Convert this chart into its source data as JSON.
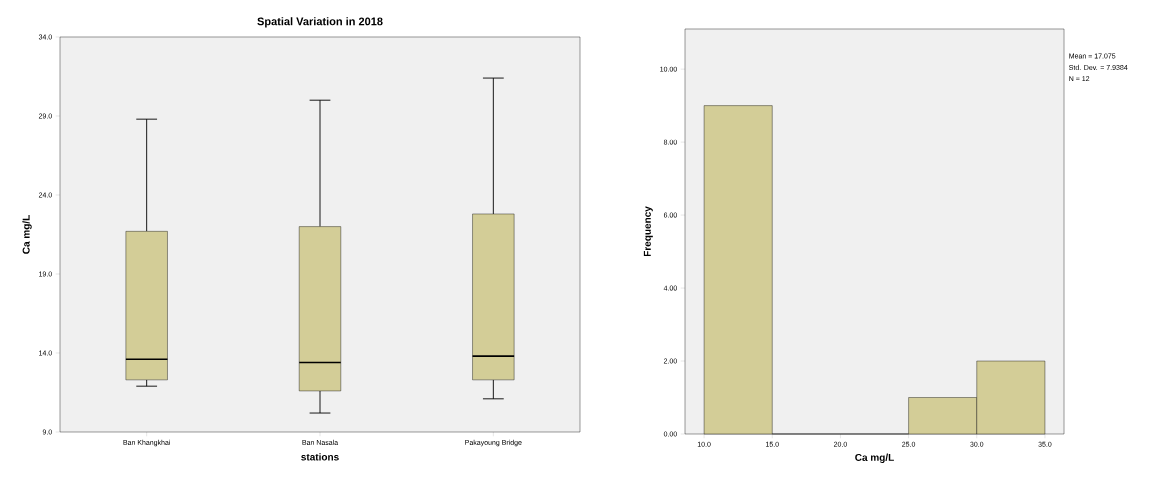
{
  "chart_data": [
    {
      "type": "box",
      "title": "Spatial Variation in 2018",
      "xlabel": "stations",
      "ylabel": "Ca mg/L",
      "categories": [
        "Ban Khangkhai",
        "Ban Nasala",
        "Pakayoung Bridge"
      ],
      "color": "#d3cd97",
      "boxes": [
        {
          "low": 11.9,
          "q1": 12.3,
          "median": 13.6,
          "q3": 21.7,
          "high": 28.8
        },
        {
          "low": 10.2,
          "q1": 11.6,
          "median": 13.4,
          "q3": 22.0,
          "high": 30.0
        },
        {
          "low": 11.1,
          "q1": 12.3,
          "median": 13.8,
          "q3": 22.8,
          "high": 31.4
        }
      ],
      "ylim": [
        9,
        34
      ],
      "yticks": [
        {
          "value": 9,
          "label": "9.0"
        },
        {
          "value": 14,
          "label": "14.0"
        },
        {
          "value": 19,
          "label": "19.0"
        },
        {
          "value": 24,
          "label": "24.0"
        },
        {
          "value": 29,
          "label": "29.0"
        },
        {
          "value": 34,
          "label": "34.0"
        }
      ],
      "grid": false
    },
    {
      "type": "histogram",
      "xlabel": "Ca mg/L",
      "ylabel": "Frequency",
      "color": "#d3cd97",
      "bins": [
        10,
        15,
        20,
        25,
        30,
        35
      ],
      "values": [
        9,
        0,
        0,
        1,
        2
      ],
      "xlim": [
        8.6,
        36.4
      ],
      "ylim": [
        0,
        11.1
      ],
      "xticks": [
        {
          "value": 10,
          "label": "10.0"
        },
        {
          "value": 15,
          "label": "15.0"
        },
        {
          "value": 20,
          "label": "20.0"
        },
        {
          "value": 25,
          "label": "25.0"
        },
        {
          "value": 30,
          "label": "30.0"
        },
        {
          "value": 35,
          "label": "35.0"
        }
      ],
      "yticks": [
        {
          "value": 0,
          "label": "0.00"
        },
        {
          "value": 2,
          "label": "2.00"
        },
        {
          "value": 4,
          "label": "4.00"
        },
        {
          "value": 6,
          "label": "6.00"
        },
        {
          "value": 8,
          "label": "8.00"
        },
        {
          "value": 10,
          "label": "10.00"
        }
      ],
      "annotations": [
        "Mean = 17.075",
        "Std. Dev. = 7.9384",
        "N = 12"
      ],
      "grid": false
    }
  ]
}
